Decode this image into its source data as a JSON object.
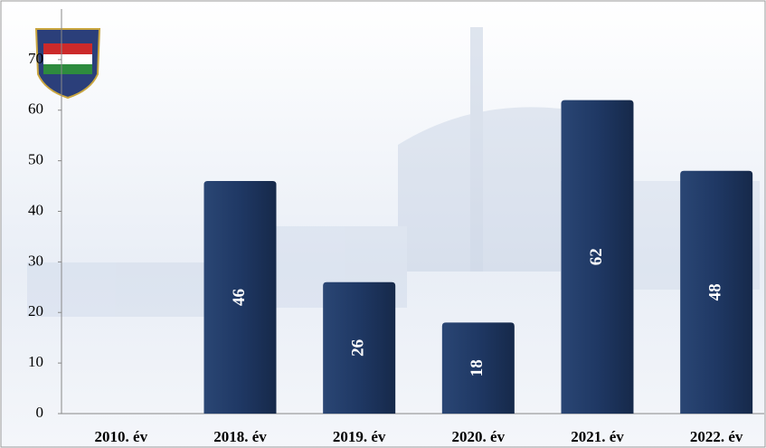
{
  "chart_data": {
    "type": "bar",
    "categories": [
      "2010. év",
      "2018. év",
      "2019. év",
      "2020. év",
      "2021. év",
      "2022. év"
    ],
    "values": [
      null,
      46,
      26,
      18,
      62,
      48
    ],
    "color": "#1f3864",
    "ylim": [
      0,
      80
    ],
    "yticks": [
      0,
      10,
      20,
      30,
      40,
      50,
      60,
      70
    ],
    "grid": false
  }
}
